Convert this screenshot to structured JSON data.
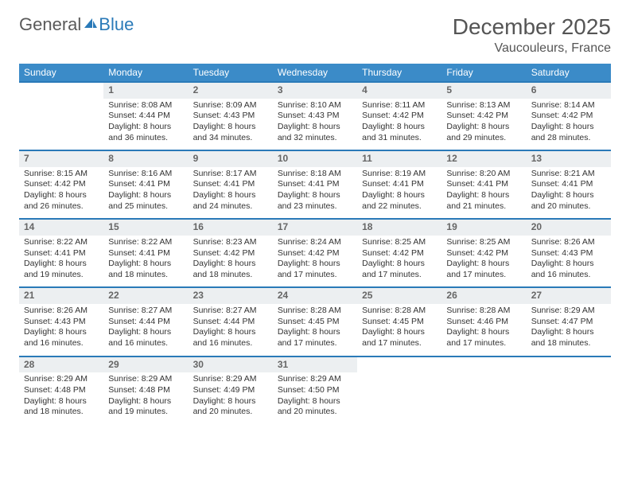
{
  "logo": {
    "part1": "General",
    "part2": "Blue"
  },
  "title": "December 2025",
  "location": "Vaucouleurs, France",
  "colors": {
    "header_bg": "#3b8bc8",
    "header_text": "#ffffff",
    "daynum_bg": "#eceff1",
    "border": "#2a7ab8",
    "text": "#333333",
    "logo_gray": "#5a5a5a",
    "logo_blue": "#2a7ab8"
  },
  "weekdays": [
    "Sunday",
    "Monday",
    "Tuesday",
    "Wednesday",
    "Thursday",
    "Friday",
    "Saturday"
  ],
  "weeks": [
    [
      null,
      {
        "n": "1",
        "sr": "8:08 AM",
        "ss": "4:44 PM",
        "dl": "8 hours and 36 minutes."
      },
      {
        "n": "2",
        "sr": "8:09 AM",
        "ss": "4:43 PM",
        "dl": "8 hours and 34 minutes."
      },
      {
        "n": "3",
        "sr": "8:10 AM",
        "ss": "4:43 PM",
        "dl": "8 hours and 32 minutes."
      },
      {
        "n": "4",
        "sr": "8:11 AM",
        "ss": "4:42 PM",
        "dl": "8 hours and 31 minutes."
      },
      {
        "n": "5",
        "sr": "8:13 AM",
        "ss": "4:42 PM",
        "dl": "8 hours and 29 minutes."
      },
      {
        "n": "6",
        "sr": "8:14 AM",
        "ss": "4:42 PM",
        "dl": "8 hours and 28 minutes."
      }
    ],
    [
      {
        "n": "7",
        "sr": "8:15 AM",
        "ss": "4:42 PM",
        "dl": "8 hours and 26 minutes."
      },
      {
        "n": "8",
        "sr": "8:16 AM",
        "ss": "4:41 PM",
        "dl": "8 hours and 25 minutes."
      },
      {
        "n": "9",
        "sr": "8:17 AM",
        "ss": "4:41 PM",
        "dl": "8 hours and 24 minutes."
      },
      {
        "n": "10",
        "sr": "8:18 AM",
        "ss": "4:41 PM",
        "dl": "8 hours and 23 minutes."
      },
      {
        "n": "11",
        "sr": "8:19 AM",
        "ss": "4:41 PM",
        "dl": "8 hours and 22 minutes."
      },
      {
        "n": "12",
        "sr": "8:20 AM",
        "ss": "4:41 PM",
        "dl": "8 hours and 21 minutes."
      },
      {
        "n": "13",
        "sr": "8:21 AM",
        "ss": "4:41 PM",
        "dl": "8 hours and 20 minutes."
      }
    ],
    [
      {
        "n": "14",
        "sr": "8:22 AM",
        "ss": "4:41 PM",
        "dl": "8 hours and 19 minutes."
      },
      {
        "n": "15",
        "sr": "8:22 AM",
        "ss": "4:41 PM",
        "dl": "8 hours and 18 minutes."
      },
      {
        "n": "16",
        "sr": "8:23 AM",
        "ss": "4:42 PM",
        "dl": "8 hours and 18 minutes."
      },
      {
        "n": "17",
        "sr": "8:24 AM",
        "ss": "4:42 PM",
        "dl": "8 hours and 17 minutes."
      },
      {
        "n": "18",
        "sr": "8:25 AM",
        "ss": "4:42 PM",
        "dl": "8 hours and 17 minutes."
      },
      {
        "n": "19",
        "sr": "8:25 AM",
        "ss": "4:42 PM",
        "dl": "8 hours and 17 minutes."
      },
      {
        "n": "20",
        "sr": "8:26 AM",
        "ss": "4:43 PM",
        "dl": "8 hours and 16 minutes."
      }
    ],
    [
      {
        "n": "21",
        "sr": "8:26 AM",
        "ss": "4:43 PM",
        "dl": "8 hours and 16 minutes."
      },
      {
        "n": "22",
        "sr": "8:27 AM",
        "ss": "4:44 PM",
        "dl": "8 hours and 16 minutes."
      },
      {
        "n": "23",
        "sr": "8:27 AM",
        "ss": "4:44 PM",
        "dl": "8 hours and 16 minutes."
      },
      {
        "n": "24",
        "sr": "8:28 AM",
        "ss": "4:45 PM",
        "dl": "8 hours and 17 minutes."
      },
      {
        "n": "25",
        "sr": "8:28 AM",
        "ss": "4:45 PM",
        "dl": "8 hours and 17 minutes."
      },
      {
        "n": "26",
        "sr": "8:28 AM",
        "ss": "4:46 PM",
        "dl": "8 hours and 17 minutes."
      },
      {
        "n": "27",
        "sr": "8:29 AM",
        "ss": "4:47 PM",
        "dl": "8 hours and 18 minutes."
      }
    ],
    [
      {
        "n": "28",
        "sr": "8:29 AM",
        "ss": "4:48 PM",
        "dl": "8 hours and 18 minutes."
      },
      {
        "n": "29",
        "sr": "8:29 AM",
        "ss": "4:48 PM",
        "dl": "8 hours and 19 minutes."
      },
      {
        "n": "30",
        "sr": "8:29 AM",
        "ss": "4:49 PM",
        "dl": "8 hours and 20 minutes."
      },
      {
        "n": "31",
        "sr": "8:29 AM",
        "ss": "4:50 PM",
        "dl": "8 hours and 20 minutes."
      },
      null,
      null,
      null
    ]
  ],
  "labels": {
    "sunrise": "Sunrise: ",
    "sunset": "Sunset: ",
    "daylight": "Daylight: "
  }
}
